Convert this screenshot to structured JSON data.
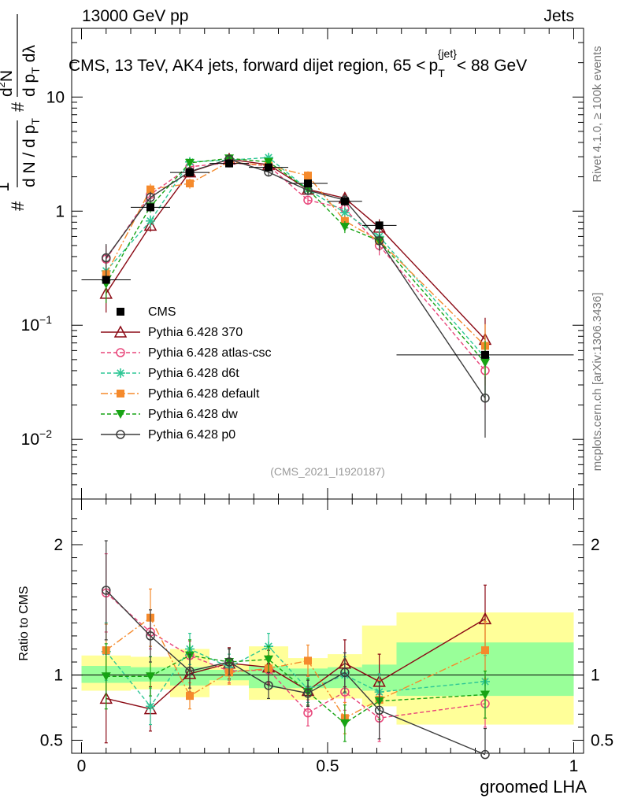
{
  "header": {
    "energy_label": "13000 GeV pp",
    "category_label": "Jets"
  },
  "side_labels": {
    "rivet": "Rivet 4.1.0, ≥ 100k events",
    "mcplots": "mcplots.cern.ch [arXiv:1306.3436]"
  },
  "chart_data": {
    "type": "line",
    "title": "CMS, 13 TeV, AK4 jets, forward dijet region, 65 < p_T^{jet} < 88 GeV",
    "title_parts": {
      "main": "CMS, 13 TeV, AK4 jets, forward dijet region, 65 <",
      "p": "p",
      "sub": "T",
      "sup": "{jet}",
      "tail": "< 88 GeV"
    },
    "analysis_id": "(CMS_2021_I1920187)",
    "xlabel": "groomed LHA",
    "ylabel_parts": {
      "hash1": "#",
      "one": "1",
      "dn": "d N / d p",
      "dn_sub": "T",
      "hash2": "#",
      "d2n": "d",
      "d2n_sup": "2",
      "d2n_n": "N",
      "dpt": "d p",
      "dpt_sub": "T",
      "dlam": "dλ"
    },
    "ratio_ylabel": "Ratio to CMS",
    "xlim": [
      -0.02,
      1.02
    ],
    "ylim_log": [
      0.003,
      40
    ],
    "ratio_ylim": [
      0.4,
      2.35
    ],
    "x_ticks": [
      {
        "value": 0,
        "label": "0"
      },
      {
        "value": 0.5,
        "label": "0.5"
      },
      {
        "value": 1,
        "label": "1"
      }
    ],
    "y_ticks": [
      {
        "value": 10,
        "label": "10"
      },
      {
        "value": 1,
        "label": "1"
      },
      {
        "value": 0.1,
        "base": "10",
        "exp": "−1"
      },
      {
        "value": 0.01,
        "base": "10",
        "exp": "−2"
      }
    ],
    "ratio_ticks": [
      {
        "value": 0.5,
        "label": "0.5"
      },
      {
        "value": 1,
        "label": "1"
      },
      {
        "value": 2,
        "label": "2"
      }
    ],
    "bins": [
      {
        "lo": 0.0,
        "hi": 0.1,
        "x": 0.05
      },
      {
        "lo": 0.1,
        "hi": 0.18,
        "x": 0.14
      },
      {
        "lo": 0.18,
        "hi": 0.26,
        "x": 0.22
      },
      {
        "lo": 0.26,
        "hi": 0.34,
        "x": 0.3
      },
      {
        "lo": 0.34,
        "hi": 0.42,
        "x": 0.38
      },
      {
        "lo": 0.42,
        "hi": 0.5,
        "x": 0.46
      },
      {
        "lo": 0.5,
        "hi": 0.57,
        "x": 0.535
      },
      {
        "lo": 0.57,
        "hi": 0.64,
        "x": 0.605
      },
      {
        "lo": 0.64,
        "hi": 1.0,
        "x": 0.82
      }
    ],
    "cms": {
      "name": "CMS",
      "values": [
        0.25,
        1.08,
        2.18,
        2.62,
        2.42,
        1.75,
        1.22,
        0.75,
        0.055
      ],
      "band_stat": [
        [
          0.94,
          1.07
        ],
        [
          0.95,
          1.06
        ],
        [
          0.92,
          1.06
        ],
        [
          0.96,
          1.04
        ],
        [
          0.9,
          1.07
        ],
        [
          0.9,
          1.05
        ],
        [
          0.9,
          1.06
        ],
        [
          0.88,
          1.08
        ],
        [
          0.84,
          1.25
        ]
      ],
      "band_total": [
        [
          0.88,
          1.15
        ],
        [
          0.89,
          1.14
        ],
        [
          0.83,
          1.2
        ],
        [
          0.92,
          1.08
        ],
        [
          0.81,
          1.22
        ],
        [
          0.81,
          1.13
        ],
        [
          0.82,
          1.16
        ],
        [
          0.76,
          1.38
        ],
        [
          0.62,
          1.48
        ]
      ]
    },
    "series": [
      {
        "name": "Pythia 6.428 370",
        "color": "#8b0a15",
        "dash": "",
        "marker": "triangle-open",
        "values": [
          0.19,
          0.75,
          2.2,
          2.85,
          2.55,
          1.55,
          1.3,
          0.72,
          0.075
        ],
        "ratio": [
          0.82,
          0.74,
          1.01,
          1.09,
          1.06,
          0.88,
          1.09,
          0.95,
          1.43
        ],
        "ratio_err": [
          0.34,
          0.17,
          0.14,
          0.12,
          0.13,
          0.12,
          0.18,
          0.21,
          0.26
        ]
      },
      {
        "name": "Pythia 6.428 atlas-csc",
        "color": "#e8457a",
        "dash": "5,3",
        "marker": "circle-open",
        "values": [
          0.38,
          1.4,
          2.45,
          2.65,
          2.5,
          1.25,
          1.05,
          0.5,
          0.04
        ],
        "ratio": [
          1.63,
          1.33,
          1.15,
          1.03,
          1.04,
          0.71,
          0.87,
          0.67,
          0.78
        ],
        "ratio_err": [
          0.3,
          0.13,
          0.11,
          0.09,
          0.1,
          0.1,
          0.14,
          0.18,
          0.18
        ]
      },
      {
        "name": "Pythia 6.428 d6t",
        "color": "#2ec795",
        "dash": "5,3",
        "marker": "star",
        "values": [
          0.3,
          0.82,
          2.7,
          2.8,
          2.95,
          1.55,
          0.97,
          0.6,
          0.052
        ],
        "ratio": [
          1.18,
          0.76,
          1.2,
          1.06,
          1.22,
          0.89,
          1.0,
          0.87,
          0.95
        ],
        "ratio_err": [
          0.22,
          0.14,
          0.12,
          0.1,
          0.1,
          0.1,
          0.14,
          0.14,
          0.2
        ]
      },
      {
        "name": "Pythia 6.428 default",
        "color": "#f58a2c",
        "dash": "9,3,2,3",
        "marker": "square",
        "values": [
          0.28,
          1.55,
          1.75,
          2.7,
          2.5,
          2.05,
          0.82,
          0.55,
          0.066
        ],
        "ratio": [
          1.19,
          1.44,
          0.84,
          1.02,
          1.05,
          1.11,
          0.67,
          0.81,
          1.19
        ],
        "ratio_err": [
          0.2,
          0.22,
          0.1,
          0.09,
          0.1,
          0.12,
          0.12,
          0.15,
          0.22
        ]
      },
      {
        "name": "Pythia 6.428 dw",
        "color": "#17a314",
        "dash": "5,3",
        "marker": "triangle-down",
        "values": [
          0.23,
          1.1,
          2.65,
          2.9,
          2.7,
          1.55,
          0.73,
          0.55,
          0.047
        ],
        "ratio": [
          0.99,
          0.99,
          1.15,
          1.1,
          1.12,
          0.87,
          0.63,
          0.8,
          0.85
        ],
        "ratio_err": [
          0.25,
          0.15,
          0.12,
          0.1,
          0.1,
          0.1,
          0.14,
          0.14,
          0.18
        ]
      },
      {
        "name": "Pythia 6.428 p0",
        "color": "#3b3b3b",
        "dash": "",
        "marker": "circle-open",
        "values": [
          0.39,
          1.32,
          2.22,
          2.85,
          2.2,
          1.52,
          1.25,
          0.55,
          0.023
        ],
        "ratio": [
          1.65,
          1.3,
          1.03,
          1.1,
          0.92,
          0.86,
          1.02,
          0.73,
          0.39
        ],
        "ratio_err": [
          0.38,
          0.2,
          0.13,
          0.1,
          0.1,
          0.1,
          0.15,
          0.22,
          0.2
        ]
      }
    ],
    "main_rel_err": [
      0.32,
      0.12,
      0.1,
      0.07,
      0.08,
      0.09,
      0.12,
      0.18,
      0.55
    ]
  }
}
